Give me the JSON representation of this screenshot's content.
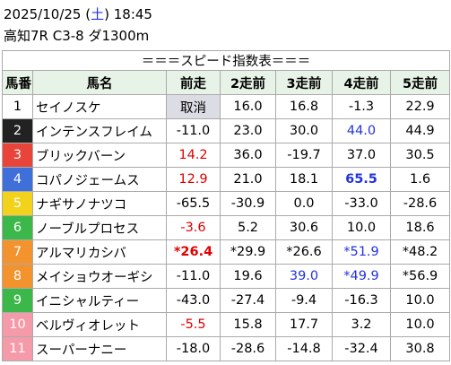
{
  "header": {
    "date": "2025/10/25",
    "weekday": "土",
    "time": "18:45",
    "race": "高知7R C3-8 ダ1300m"
  },
  "table": {
    "title": "＝＝＝スピード指数表＝＝＝",
    "columns": [
      "馬番",
      "馬名",
      "前走",
      "2走前",
      "3走前",
      "4走前",
      "5走前"
    ],
    "rows": [
      {
        "number": "1",
        "name": "セイノスケ",
        "values": [
          "取消",
          "16.0",
          "16.8",
          "-1.3",
          "22.9"
        ],
        "frame_color": "#ffffff",
        "number_color": "#000000",
        "value_colors": [
          "#000000",
          "#000000",
          "#000000",
          "#000000",
          "#000000"
        ],
        "bold": [],
        "cancelled": [
          0
        ]
      },
      {
        "number": "2",
        "name": "インテンスフレイム",
        "values": [
          "-11.0",
          "23.0",
          "30.0",
          "44.0",
          "44.9"
        ],
        "frame_color": "#222222",
        "number_color": "#ffffff",
        "value_colors": [
          "#000000",
          "#000000",
          "#000000",
          "#2233dd",
          "#000000"
        ],
        "bold": [],
        "cancelled": []
      },
      {
        "number": "3",
        "name": "ブリックバーン",
        "values": [
          "14.2",
          "36.0",
          "-19.7",
          "37.0",
          "30.5"
        ],
        "frame_color": "#e8443a",
        "number_color": "#ffffff",
        "value_colors": [
          "#e00000",
          "#000000",
          "#000000",
          "#000000",
          "#000000"
        ],
        "bold": [],
        "cancelled": []
      },
      {
        "number": "4",
        "name": "コパノジェームス",
        "values": [
          "12.9",
          "21.0",
          "18.1",
          "65.5",
          "1.6"
        ],
        "frame_color": "#3f6fd8",
        "number_color": "#ffffff",
        "value_colors": [
          "#e00000",
          "#000000",
          "#000000",
          "#2233dd",
          "#000000"
        ],
        "bold": [
          3
        ],
        "cancelled": []
      },
      {
        "number": "5",
        "name": "ナギサノナツコ",
        "values": [
          "-65.5",
          "-30.9",
          "0.0",
          "-33.0",
          "-28.6"
        ],
        "frame_color": "#f3d21c",
        "number_color": "#ffffff",
        "value_colors": [
          "#000000",
          "#000000",
          "#000000",
          "#000000",
          "#000000"
        ],
        "bold": [],
        "cancelled": []
      },
      {
        "number": "6",
        "name": "ノーブルプロセス",
        "values": [
          "-3.6",
          "5.2",
          "30.6",
          "10.0",
          "18.6"
        ],
        "frame_color": "#3cb84a",
        "number_color": "#ffffff",
        "value_colors": [
          "#e00000",
          "#000000",
          "#000000",
          "#000000",
          "#000000"
        ],
        "bold": [],
        "cancelled": []
      },
      {
        "number": "7",
        "name": "アルマリカシバ",
        "values": [
          "*26.4",
          "*29.9",
          "*26.6",
          "*51.9",
          "*48.2"
        ],
        "frame_color": "#f2932d",
        "number_color": "#ffffff",
        "value_colors": [
          "#e00000",
          "#000000",
          "#000000",
          "#2233dd",
          "#000000"
        ],
        "bold": [
          0
        ],
        "cancelled": []
      },
      {
        "number": "8",
        "name": "メイショウオーギシ",
        "values": [
          "-11.0",
          "19.6",
          "39.0",
          "*49.9",
          "*56.9"
        ],
        "frame_color": "#f2932d",
        "number_color": "#ffffff",
        "value_colors": [
          "#000000",
          "#000000",
          "#2233dd",
          "#2233dd",
          "#000000"
        ],
        "bold": [],
        "cancelled": []
      },
      {
        "number": "9",
        "name": "イニシャルティー",
        "values": [
          "-43.0",
          "-27.4",
          "-9.4",
          "-16.3",
          "10.0"
        ],
        "frame_color": "#3cb84a",
        "number_color": "#ffffff",
        "value_colors": [
          "#000000",
          "#000000",
          "#000000",
          "#000000",
          "#000000"
        ],
        "bold": [],
        "cancelled": []
      },
      {
        "number": "10",
        "name": "ベルヴィオレット",
        "values": [
          "-5.5",
          "15.8",
          "17.7",
          "3.2",
          "10.0"
        ],
        "frame_color": "#f59aa8",
        "number_color": "#ffffff",
        "value_colors": [
          "#e00000",
          "#000000",
          "#000000",
          "#000000",
          "#000000"
        ],
        "bold": [],
        "cancelled": []
      },
      {
        "number": "11",
        "name": "スーパーナニー",
        "values": [
          "-18.0",
          "-28.6",
          "-14.8",
          "-32.4",
          "30.8"
        ],
        "frame_color": "#f59aa8",
        "number_color": "#ffffff",
        "value_colors": [
          "#000000",
          "#000000",
          "#000000",
          "#000000",
          "#000000"
        ],
        "bold": [],
        "cancelled": []
      }
    ]
  }
}
